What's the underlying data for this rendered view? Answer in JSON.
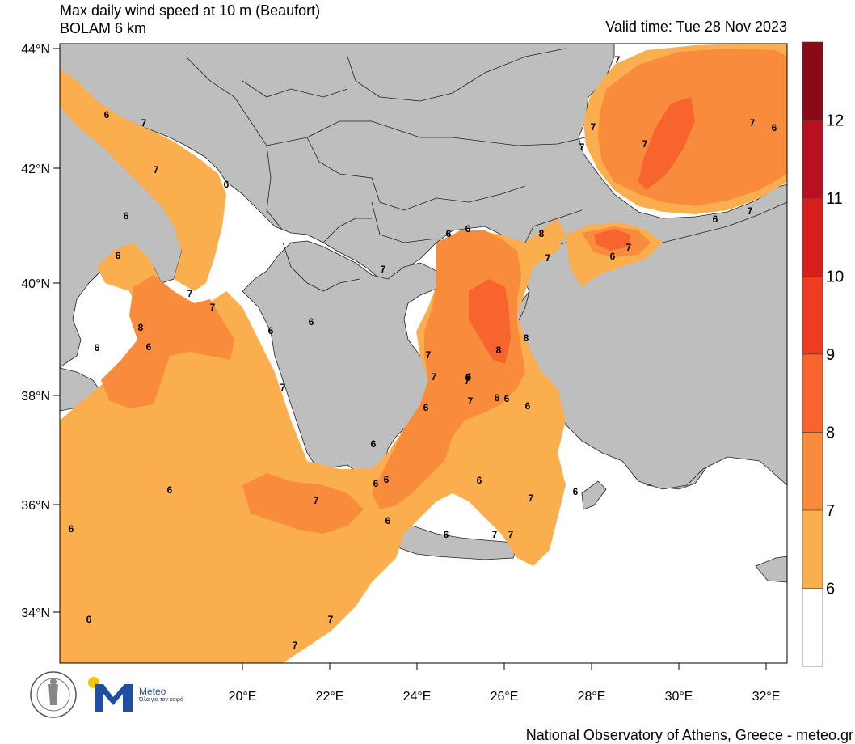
{
  "header": {
    "title": "Max daily wind speed at 10 m (Beaufort)",
    "model": "BOLAM 6 km",
    "valid_time": "Valid time: Tue 28 Nov 2023"
  },
  "axes": {
    "lat_labels": [
      "44°N",
      "42°N",
      "40°N",
      "38°N",
      "36°N",
      "34°N"
    ],
    "lon_labels": [
      "20°E",
      "22°E",
      "24°E",
      "26°E",
      "28°E",
      "30°E",
      "32°E"
    ]
  },
  "colorbar": {
    "labels": [
      "12",
      "11",
      "10",
      "9",
      "8",
      "7",
      "6"
    ],
    "colors": [
      "#8b0a1a",
      "#b8101e",
      "#d81d1d",
      "#ee3b24",
      "#f7642d",
      "#f98c3c",
      "#fbae4e",
      "#ffffff"
    ]
  },
  "map_labels": [
    "6",
    "7",
    "7",
    "6",
    "6",
    "6",
    "6",
    "7",
    "7",
    "7",
    "7",
    "6",
    "6",
    "7",
    "7",
    "8",
    "7",
    "6",
    "7",
    "6",
    "6",
    "7",
    "7",
    "7",
    "8",
    "6",
    "6",
    "6",
    "8",
    "8",
    "7",
    "7",
    "7",
    "7",
    "6",
    "6",
    "6",
    "6",
    "6",
    "6",
    "6",
    "6",
    "6",
    "7",
    "7",
    "7",
    "6",
    "6",
    "7",
    "7",
    "7",
    "6",
    "6",
    "6",
    "6",
    "7",
    "6"
  ],
  "footer": {
    "credit": "National Observatory of Athens, Greece - meteo.gr"
  },
  "logo": {
    "brand": "Meteo",
    "tagline": "Όλα για τον καιρό"
  },
  "colors": {
    "land": "#bebebe",
    "beaufort_6_7": "#fbae4e",
    "beaufort_7_8": "#f98c3c",
    "beaufort_8_9": "#f7642d"
  }
}
